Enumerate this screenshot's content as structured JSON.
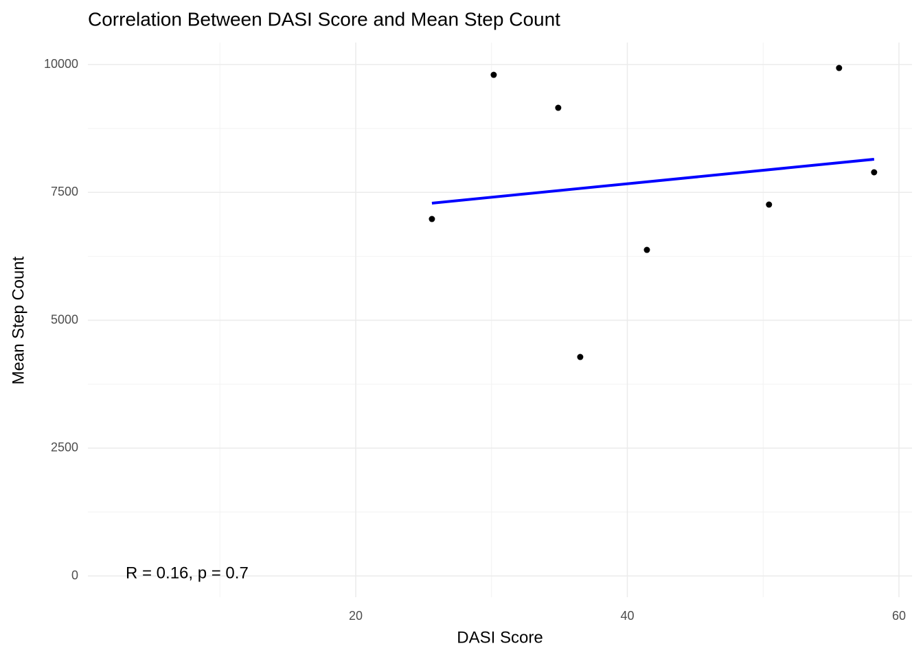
{
  "chart_data": {
    "type": "scatter",
    "title": "Correlation Between DASI Score and Mean Step Count",
    "x_label": "DASI Score",
    "y_label": "Mean Step Count",
    "annotation": "R = 0.16, p = 0.7",
    "x": [
      25.61,
      30.16,
      34.91,
      36.53,
      41.44,
      50.43,
      55.59,
      58.17
    ],
    "values": [
      6980,
      9799,
      9154,
      4282,
      6376,
      7262,
      9933,
      7893
    ],
    "color": "#000000",
    "fit_line": {
      "x": [
        25.61,
        58.17
      ],
      "values": [
        7289,
        8148
      ],
      "color": "#0000ff"
    },
    "xlim": [
      0.28,
      60.96
    ],
    "ylim": [
      -416,
      10430
    ],
    "xticks": [
      20,
      40,
      60
    ],
    "yticks": [
      0,
      2500,
      5000,
      7500,
      10000
    ],
    "x_minor_ticks": [
      10,
      30,
      50
    ],
    "y_minor_ticks": [
      1250,
      3750,
      6250,
      8750
    ],
    "grid": true
  }
}
